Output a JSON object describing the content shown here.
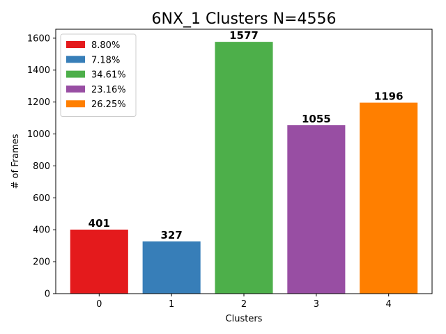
{
  "chart_data": {
    "type": "bar",
    "title": "6NX_1 Clusters N=4556",
    "xlabel": "Clusters",
    "ylabel": "# of Frames",
    "categories": [
      "0",
      "1",
      "2",
      "3",
      "4"
    ],
    "values": [
      401,
      327,
      1577,
      1055,
      1196
    ],
    "data_labels": [
      "401",
      "327",
      "1577",
      "1055",
      "1196"
    ],
    "colors": [
      "#e41a1c",
      "#377eb8",
      "#4daf4a",
      "#984ea3",
      "#ff7f00"
    ],
    "ylim": [
      0,
      1656
    ],
    "yticks": [
      0,
      200,
      400,
      600,
      800,
      1000,
      1200,
      1400,
      1600
    ],
    "legend": {
      "placement": "top-left",
      "entries": [
        "8.80%",
        "7.18%",
        "34.61%",
        "23.16%",
        "26.25%"
      ]
    },
    "grid": false
  }
}
